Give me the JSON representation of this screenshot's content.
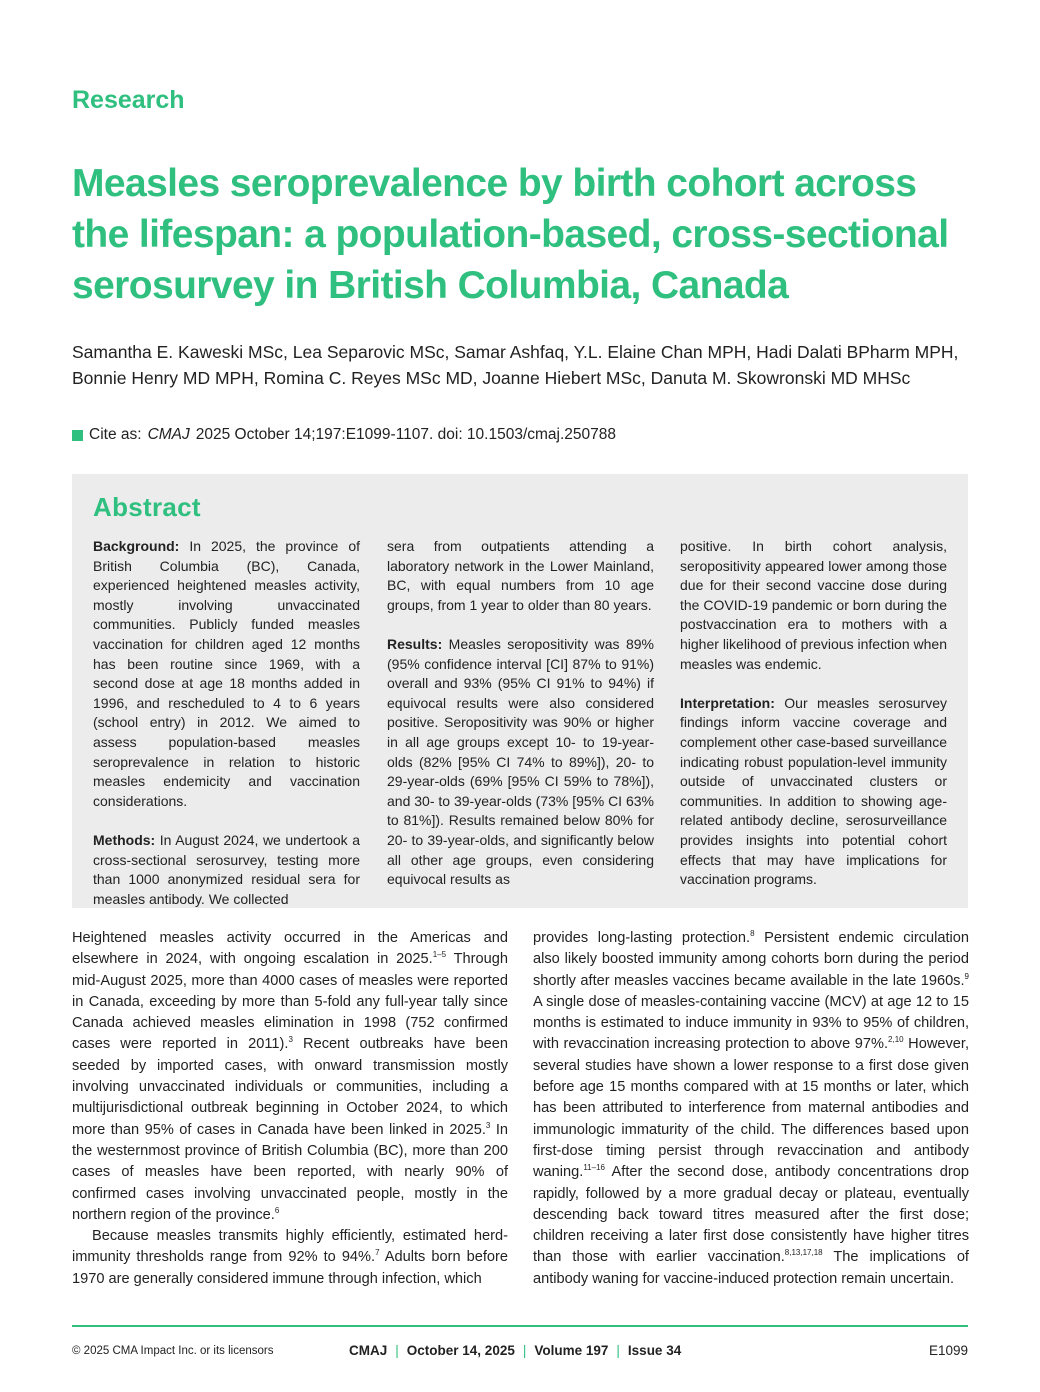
{
  "section_label": "Research",
  "title_lines": [
    "Measles seroprevalence by birth cohort across",
    "the lifespan: a population-based, cross-sectional",
    "serosurvey in British Columbia, Canada"
  ],
  "authors": "Samantha E. Kaweski MSc, Lea Separovic MSc, Samar Ashfaq, Y.L. Elaine Chan MPH, Hadi Dalati BPharm MPH, Bonnie Henry MD MPH, Romina C. Reyes MSc MD, Joanne Hiebert MSc, Danuta M. Skowronski MD MHSc",
  "cite": {
    "prefix": "Cite as:",
    "journal": "CMAJ",
    "rest": "2025 October 14;197:E1099-1107. doi: 10.1503/cmaj.250788"
  },
  "colors": {
    "accent": "#2fbf7f",
    "abstract_bg": "#ececec"
  },
  "abstract": {
    "heading": "Abstract",
    "columns": [
      [
        {
          "label": "Background:",
          "text": " In 2025, the province of British Columbia (BC), Canada, experienced heightened measles activity, mostly involving unvaccinated communities. Publicly funded measles vaccination for children aged 12 months has been routine since 1969, with a second dose at age 18 months added in 1996, and rescheduled to 4 to 6 years (school entry) in 2012. We aimed to assess population-based measles seroprevalence in relation to historic measles endemicity and vaccination considerations."
        },
        {
          "label": "Methods:",
          "text": " In August 2024, we undertook a cross-sectional serosurvey, testing more than 1000 anonymized residual sera for measles antibody. We collected"
        }
      ],
      [
        {
          "label": "",
          "text": "sera from outpatients attending a laboratory network in the Lower Mainland, BC, with equal numbers from 10 age groups, from 1 year to older than 80 years."
        },
        {
          "label": "Results:",
          "text": " Measles seropositivity was 89% (95% confidence interval [CI] 87% to 91%) overall and 93% (95% CI 91% to 94%) if equivocal results were also considered positive. Seropositivity was 90% or higher in all age groups except 10- to 19-year-olds (82% [95% CI 74% to 89%]), 20- to 29-year-olds (69% [95% CI 59% to 78%]), and 30- to 39-year-olds (73% [95% CI 63% to 81%]). Results remained below 80% for 20- to 39-year-olds, and significantly below all other age groups, even considering equivocal results as"
        }
      ],
      [
        {
          "label": "",
          "text": "positive. In birth cohort analysis, seropositivity appeared lower among those due for their second vaccine dose during the COVID-19 pandemic or born during the postvaccination era to mothers with a higher likelihood of previous infection when measles was endemic."
        },
        {
          "label": "Interpretation:",
          "text": " Our measles serosurvey findings inform vaccine coverage and complement other case-based surveillance indicating robust population-level immunity outside of unvaccinated clusters or communities. In addition to showing age-related antibody decline, serosurveillance provides insights into potential cohort effects that may have implications for vaccination programs."
        }
      ]
    ]
  },
  "body": {
    "columns": [
      [
        [
          {
            "t": "Heightened measles activity occurred in the Americas and elsewhere in 2024, with ongoing escalation in 2025."
          },
          {
            "sup": "1–5"
          },
          {
            "t": " Through mid-August 2025, more than 4000 cases of measles were reported in Canada, exceeding by more than 5-fold any full-year tally since Canada achieved measles elimination in 1998 (752 confirmed cases were reported in 2011)."
          },
          {
            "sup": "3"
          },
          {
            "t": " Recent outbreaks have been seeded by imported cases, with onward transmission mostly involving unvaccinated individuals or communities, including a multijurisdictional outbreak beginning in October 2024, to which more than 95% of cases in Canada have been linked in 2025."
          },
          {
            "sup": "3"
          },
          {
            "t": " In the westernmost province of British Columbia (BC), more than 200 cases of measles have been reported, with nearly 90% of confirmed cases involving unvaccinated people, mostly in the northern region of the province."
          },
          {
            "sup": "6"
          }
        ],
        [
          {
            "t": "Because measles transmits highly efficiently, estimated herd-immunity thresholds range from 92% to 94%."
          },
          {
            "sup": "7"
          },
          {
            "t": " Adults born before 1970 are generally considered immune through infection, which"
          }
        ]
      ],
      [
        [
          {
            "t": "provides long-lasting protection."
          },
          {
            "sup": "8"
          },
          {
            "t": " Persistent endemic circulation also likely boosted immunity among cohorts born during the period shortly after measles vaccines became available in the late 1960s."
          },
          {
            "sup": "9"
          },
          {
            "t": " A single dose of measles-containing vaccine (MCV) at age 12 to 15 months is estimated to induce immunity in 93% to 95% of children, with revaccination increasing protection to above 97%."
          },
          {
            "sup": "2,10"
          },
          {
            "t": " However, several studies have shown a lower response to a first dose given before age 15 months compared with at 15 months or later, which has been attributed to interference from maternal antibodies and immunologic immaturity of the child. The differences based upon first-dose timing persist through revaccination and antibody waning."
          },
          {
            "sup": "11–16"
          },
          {
            "t": " After the second dose, antibody concentrations drop rapidly, followed by a more gradual decay or plateau, eventually descending back toward titres measured after the first dose; children receiving a later first dose consistently have higher titres than those with earlier vaccination."
          },
          {
            "sup": "8,13,17,18"
          },
          {
            "t": " The implications of antibody waning for vaccine-induced protection remain uncertain."
          }
        ]
      ]
    ]
  },
  "footer": {
    "copyright": "© 2025 CMA Impact Inc. or its licensors",
    "journal": "CMAJ",
    "date": "October 14, 2025",
    "volume": "Volume 197",
    "issue": "Issue 34",
    "separator": "|",
    "page": "E1099"
  }
}
